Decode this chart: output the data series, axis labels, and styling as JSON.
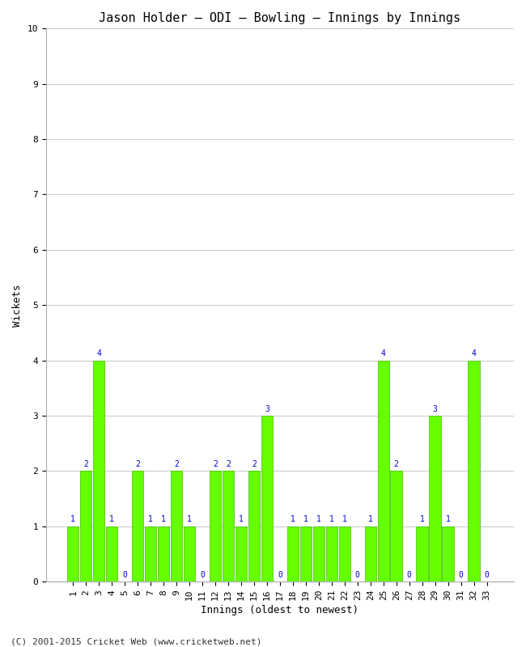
{
  "title": "Jason Holder – ODI – Bowling – Innings by Innings",
  "xlabel": "Innings (oldest to newest)",
  "ylabel": "Wickets",
  "categories": [
    "1",
    "2",
    "3",
    "4",
    "5",
    "6",
    "7",
    "8",
    "9",
    "10",
    "11",
    "12",
    "13",
    "14",
    "15",
    "16",
    "17",
    "18",
    "19",
    "20",
    "21",
    "22",
    "23",
    "24",
    "25",
    "26",
    "27",
    "28",
    "29",
    "30",
    "31",
    "32",
    "33"
  ],
  "values": [
    1,
    2,
    4,
    1,
    0,
    2,
    1,
    1,
    2,
    1,
    0,
    2,
    2,
    1,
    2,
    3,
    0,
    1,
    1,
    1,
    1,
    1,
    0,
    1,
    4,
    2,
    0,
    1,
    3,
    1,
    0,
    4,
    0
  ],
  "bar_color": "#66ff00",
  "bar_edge_color": "#44bb00",
  "annotation_color": "#0000cc",
  "background_color": "#ffffff",
  "ylim": [
    0,
    10
  ],
  "yticks": [
    0,
    1,
    2,
    3,
    4,
    5,
    6,
    7,
    8,
    9,
    10
  ],
  "grid_color": "#cccccc",
  "title_fontsize": 11,
  "axis_label_fontsize": 9,
  "tick_fontsize": 8,
  "annotation_fontsize": 7,
  "footer": "(C) 2001-2015 Cricket Web (www.cricketweb.net)"
}
